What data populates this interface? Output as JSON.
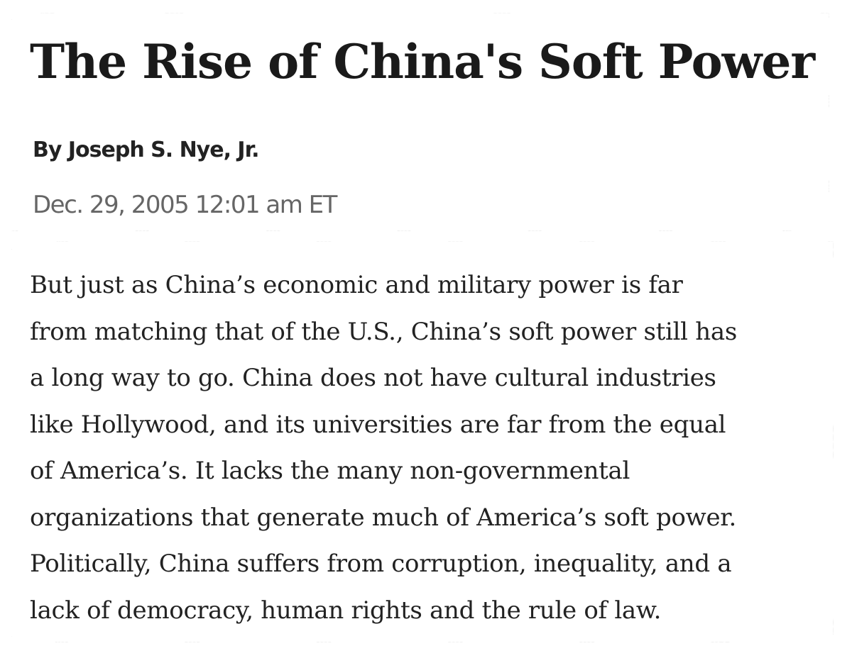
{
  "article": {
    "title": "The Rise of China's Soft Power",
    "byline": "By Joseph S. Nye, Jr.",
    "date": "Dec. 29, 2005 12:01 am ET"
  },
  "excerpt": {
    "lines": [
      "But just as China’s economic and military power is far",
      "from matching that of the U.S., China’s soft power still has",
      "a long way to go. China does not have cultural industries",
      "like Hollywood, and its universities are far from the equal",
      "of America’s. It lacks the many non-governmental",
      "organizations that generate much of America’s soft power.",
      "Politically, China suffers from corruption, inequality, and a",
      "lack of democracy, human rights and the rule of law."
    ]
  }
}
